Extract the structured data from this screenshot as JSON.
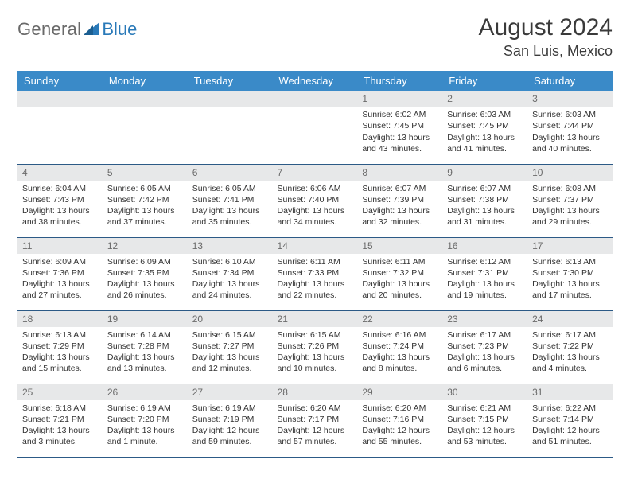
{
  "logo": {
    "text_gray": "General",
    "text_blue": "Blue"
  },
  "header": {
    "title": "August 2024",
    "location": "San Luis, Mexico"
  },
  "colors": {
    "header_bg": "#3a8ac8",
    "header_text": "#ffffff",
    "daynum_bg": "#e7e8e9",
    "row_border": "#2c5a86",
    "logo_gray": "#6a6a6a",
    "logo_blue": "#2979b8"
  },
  "days_of_week": [
    "Sunday",
    "Monday",
    "Tuesday",
    "Wednesday",
    "Thursday",
    "Friday",
    "Saturday"
  ],
  "weeks": [
    [
      {
        "n": "",
        "sr": "",
        "ss": "",
        "dl": ""
      },
      {
        "n": "",
        "sr": "",
        "ss": "",
        "dl": ""
      },
      {
        "n": "",
        "sr": "",
        "ss": "",
        "dl": ""
      },
      {
        "n": "",
        "sr": "",
        "ss": "",
        "dl": ""
      },
      {
        "n": "1",
        "sr": "Sunrise: 6:02 AM",
        "ss": "Sunset: 7:45 PM",
        "dl": "Daylight: 13 hours and 43 minutes."
      },
      {
        "n": "2",
        "sr": "Sunrise: 6:03 AM",
        "ss": "Sunset: 7:45 PM",
        "dl": "Daylight: 13 hours and 41 minutes."
      },
      {
        "n": "3",
        "sr": "Sunrise: 6:03 AM",
        "ss": "Sunset: 7:44 PM",
        "dl": "Daylight: 13 hours and 40 minutes."
      }
    ],
    [
      {
        "n": "4",
        "sr": "Sunrise: 6:04 AM",
        "ss": "Sunset: 7:43 PM",
        "dl": "Daylight: 13 hours and 38 minutes."
      },
      {
        "n": "5",
        "sr": "Sunrise: 6:05 AM",
        "ss": "Sunset: 7:42 PM",
        "dl": "Daylight: 13 hours and 37 minutes."
      },
      {
        "n": "6",
        "sr": "Sunrise: 6:05 AM",
        "ss": "Sunset: 7:41 PM",
        "dl": "Daylight: 13 hours and 35 minutes."
      },
      {
        "n": "7",
        "sr": "Sunrise: 6:06 AM",
        "ss": "Sunset: 7:40 PM",
        "dl": "Daylight: 13 hours and 34 minutes."
      },
      {
        "n": "8",
        "sr": "Sunrise: 6:07 AM",
        "ss": "Sunset: 7:39 PM",
        "dl": "Daylight: 13 hours and 32 minutes."
      },
      {
        "n": "9",
        "sr": "Sunrise: 6:07 AM",
        "ss": "Sunset: 7:38 PM",
        "dl": "Daylight: 13 hours and 31 minutes."
      },
      {
        "n": "10",
        "sr": "Sunrise: 6:08 AM",
        "ss": "Sunset: 7:37 PM",
        "dl": "Daylight: 13 hours and 29 minutes."
      }
    ],
    [
      {
        "n": "11",
        "sr": "Sunrise: 6:09 AM",
        "ss": "Sunset: 7:36 PM",
        "dl": "Daylight: 13 hours and 27 minutes."
      },
      {
        "n": "12",
        "sr": "Sunrise: 6:09 AM",
        "ss": "Sunset: 7:35 PM",
        "dl": "Daylight: 13 hours and 26 minutes."
      },
      {
        "n": "13",
        "sr": "Sunrise: 6:10 AM",
        "ss": "Sunset: 7:34 PM",
        "dl": "Daylight: 13 hours and 24 minutes."
      },
      {
        "n": "14",
        "sr": "Sunrise: 6:11 AM",
        "ss": "Sunset: 7:33 PM",
        "dl": "Daylight: 13 hours and 22 minutes."
      },
      {
        "n": "15",
        "sr": "Sunrise: 6:11 AM",
        "ss": "Sunset: 7:32 PM",
        "dl": "Daylight: 13 hours and 20 minutes."
      },
      {
        "n": "16",
        "sr": "Sunrise: 6:12 AM",
        "ss": "Sunset: 7:31 PM",
        "dl": "Daylight: 13 hours and 19 minutes."
      },
      {
        "n": "17",
        "sr": "Sunrise: 6:13 AM",
        "ss": "Sunset: 7:30 PM",
        "dl": "Daylight: 13 hours and 17 minutes."
      }
    ],
    [
      {
        "n": "18",
        "sr": "Sunrise: 6:13 AM",
        "ss": "Sunset: 7:29 PM",
        "dl": "Daylight: 13 hours and 15 minutes."
      },
      {
        "n": "19",
        "sr": "Sunrise: 6:14 AM",
        "ss": "Sunset: 7:28 PM",
        "dl": "Daylight: 13 hours and 13 minutes."
      },
      {
        "n": "20",
        "sr": "Sunrise: 6:15 AM",
        "ss": "Sunset: 7:27 PM",
        "dl": "Daylight: 13 hours and 12 minutes."
      },
      {
        "n": "21",
        "sr": "Sunrise: 6:15 AM",
        "ss": "Sunset: 7:26 PM",
        "dl": "Daylight: 13 hours and 10 minutes."
      },
      {
        "n": "22",
        "sr": "Sunrise: 6:16 AM",
        "ss": "Sunset: 7:24 PM",
        "dl": "Daylight: 13 hours and 8 minutes."
      },
      {
        "n": "23",
        "sr": "Sunrise: 6:17 AM",
        "ss": "Sunset: 7:23 PM",
        "dl": "Daylight: 13 hours and 6 minutes."
      },
      {
        "n": "24",
        "sr": "Sunrise: 6:17 AM",
        "ss": "Sunset: 7:22 PM",
        "dl": "Daylight: 13 hours and 4 minutes."
      }
    ],
    [
      {
        "n": "25",
        "sr": "Sunrise: 6:18 AM",
        "ss": "Sunset: 7:21 PM",
        "dl": "Daylight: 13 hours and 3 minutes."
      },
      {
        "n": "26",
        "sr": "Sunrise: 6:19 AM",
        "ss": "Sunset: 7:20 PM",
        "dl": "Daylight: 13 hours and 1 minute."
      },
      {
        "n": "27",
        "sr": "Sunrise: 6:19 AM",
        "ss": "Sunset: 7:19 PM",
        "dl": "Daylight: 12 hours and 59 minutes."
      },
      {
        "n": "28",
        "sr": "Sunrise: 6:20 AM",
        "ss": "Sunset: 7:17 PM",
        "dl": "Daylight: 12 hours and 57 minutes."
      },
      {
        "n": "29",
        "sr": "Sunrise: 6:20 AM",
        "ss": "Sunset: 7:16 PM",
        "dl": "Daylight: 12 hours and 55 minutes."
      },
      {
        "n": "30",
        "sr": "Sunrise: 6:21 AM",
        "ss": "Sunset: 7:15 PM",
        "dl": "Daylight: 12 hours and 53 minutes."
      },
      {
        "n": "31",
        "sr": "Sunrise: 6:22 AM",
        "ss": "Sunset: 7:14 PM",
        "dl": "Daylight: 12 hours and 51 minutes."
      }
    ]
  ]
}
